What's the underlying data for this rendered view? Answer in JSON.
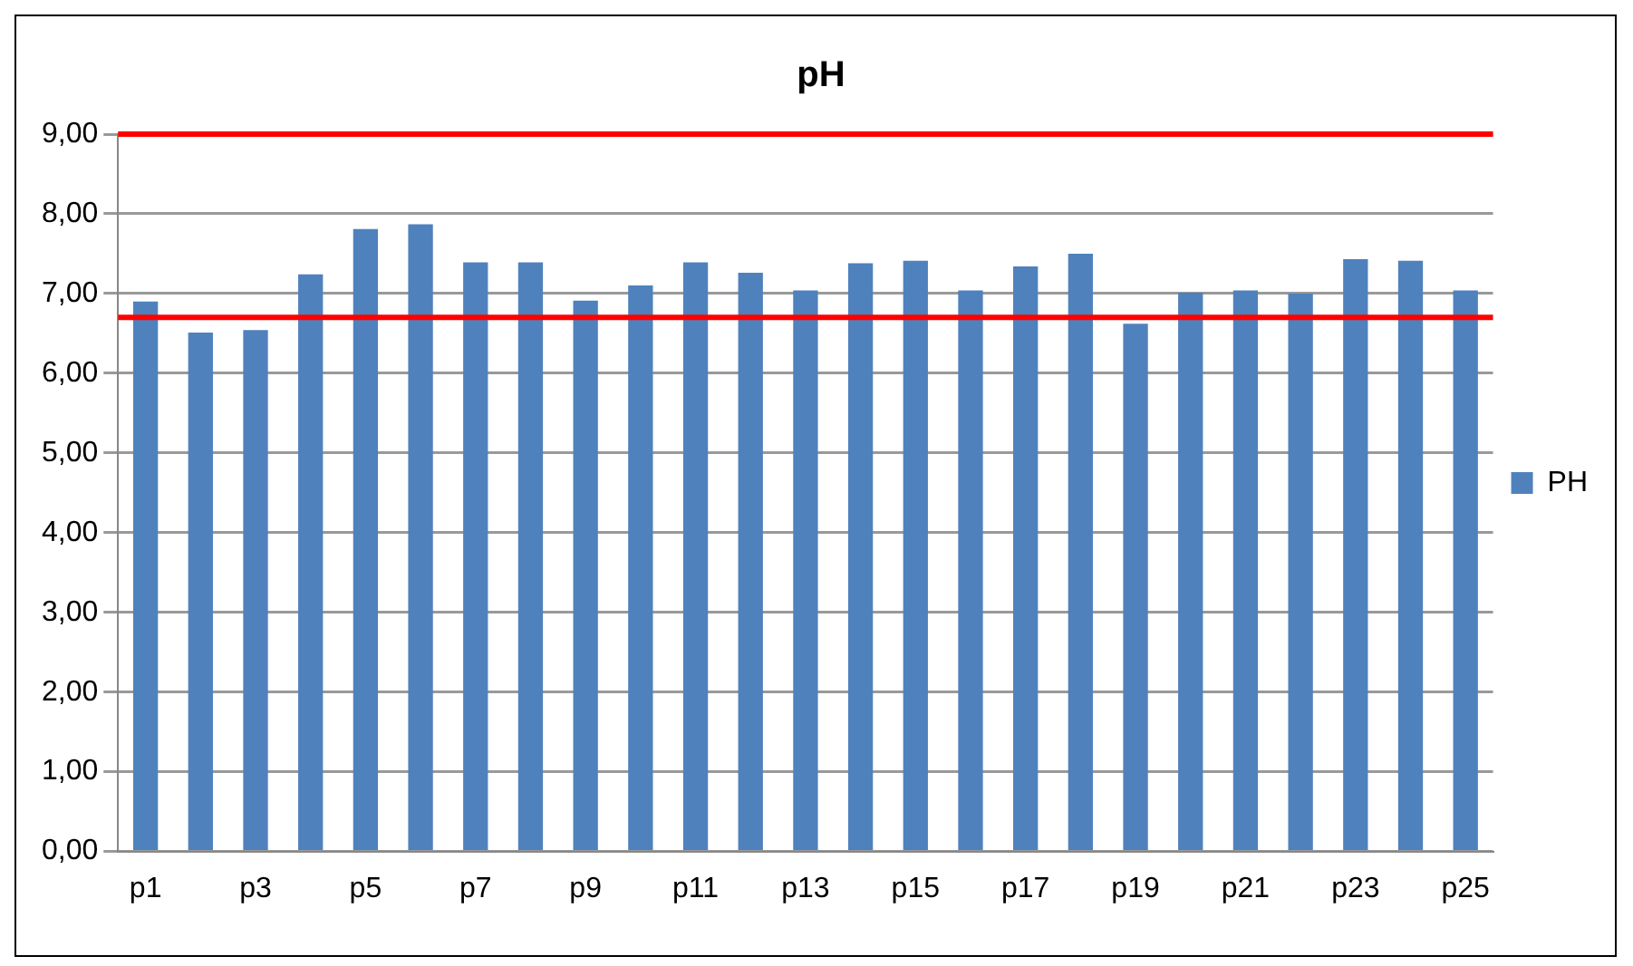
{
  "chart_data": {
    "type": "bar",
    "title": "pH",
    "categories": [
      "p1",
      null,
      "p3",
      null,
      "p5",
      null,
      "p7",
      null,
      "p9",
      null,
      "p11",
      null,
      "p13",
      null,
      "p15",
      null,
      "p17",
      null,
      "p19",
      null,
      "p21",
      null,
      "p23",
      null,
      "p25"
    ],
    "series": [
      {
        "name": "PH",
        "color": "#4f81bd",
        "values": [
          6.9,
          6.51,
          6.54,
          7.24,
          7.81,
          7.87,
          7.39,
          7.39,
          6.91,
          7.1,
          7.39,
          7.26,
          7.04,
          7.38,
          7.41,
          7.04,
          7.34,
          7.5,
          6.62,
          7.01,
          7.04,
          7.0,
          7.43,
          7.41,
          7.04
        ]
      }
    ],
    "ylim": [
      0,
      9
    ],
    "yticks": [
      {
        "value": 0,
        "label": "0,00"
      },
      {
        "value": 1,
        "label": "1,00"
      },
      {
        "value": 2,
        "label": "2,00"
      },
      {
        "value": 3,
        "label": "3,00"
      },
      {
        "value": 4,
        "label": "4,00"
      },
      {
        "value": 5,
        "label": "5,00"
      },
      {
        "value": 6,
        "label": "6,00"
      },
      {
        "value": 7,
        "label": "7,00"
      },
      {
        "value": 8,
        "label": "8,00"
      },
      {
        "value": 9,
        "label": "9,00"
      }
    ],
    "ref_lines": [
      {
        "axis": "y",
        "value": 9,
        "color": "#ff0000"
      },
      {
        "axis": "y",
        "value": 6.7,
        "color": "#ff0000"
      }
    ],
    "grid": "y",
    "legend": "right"
  }
}
